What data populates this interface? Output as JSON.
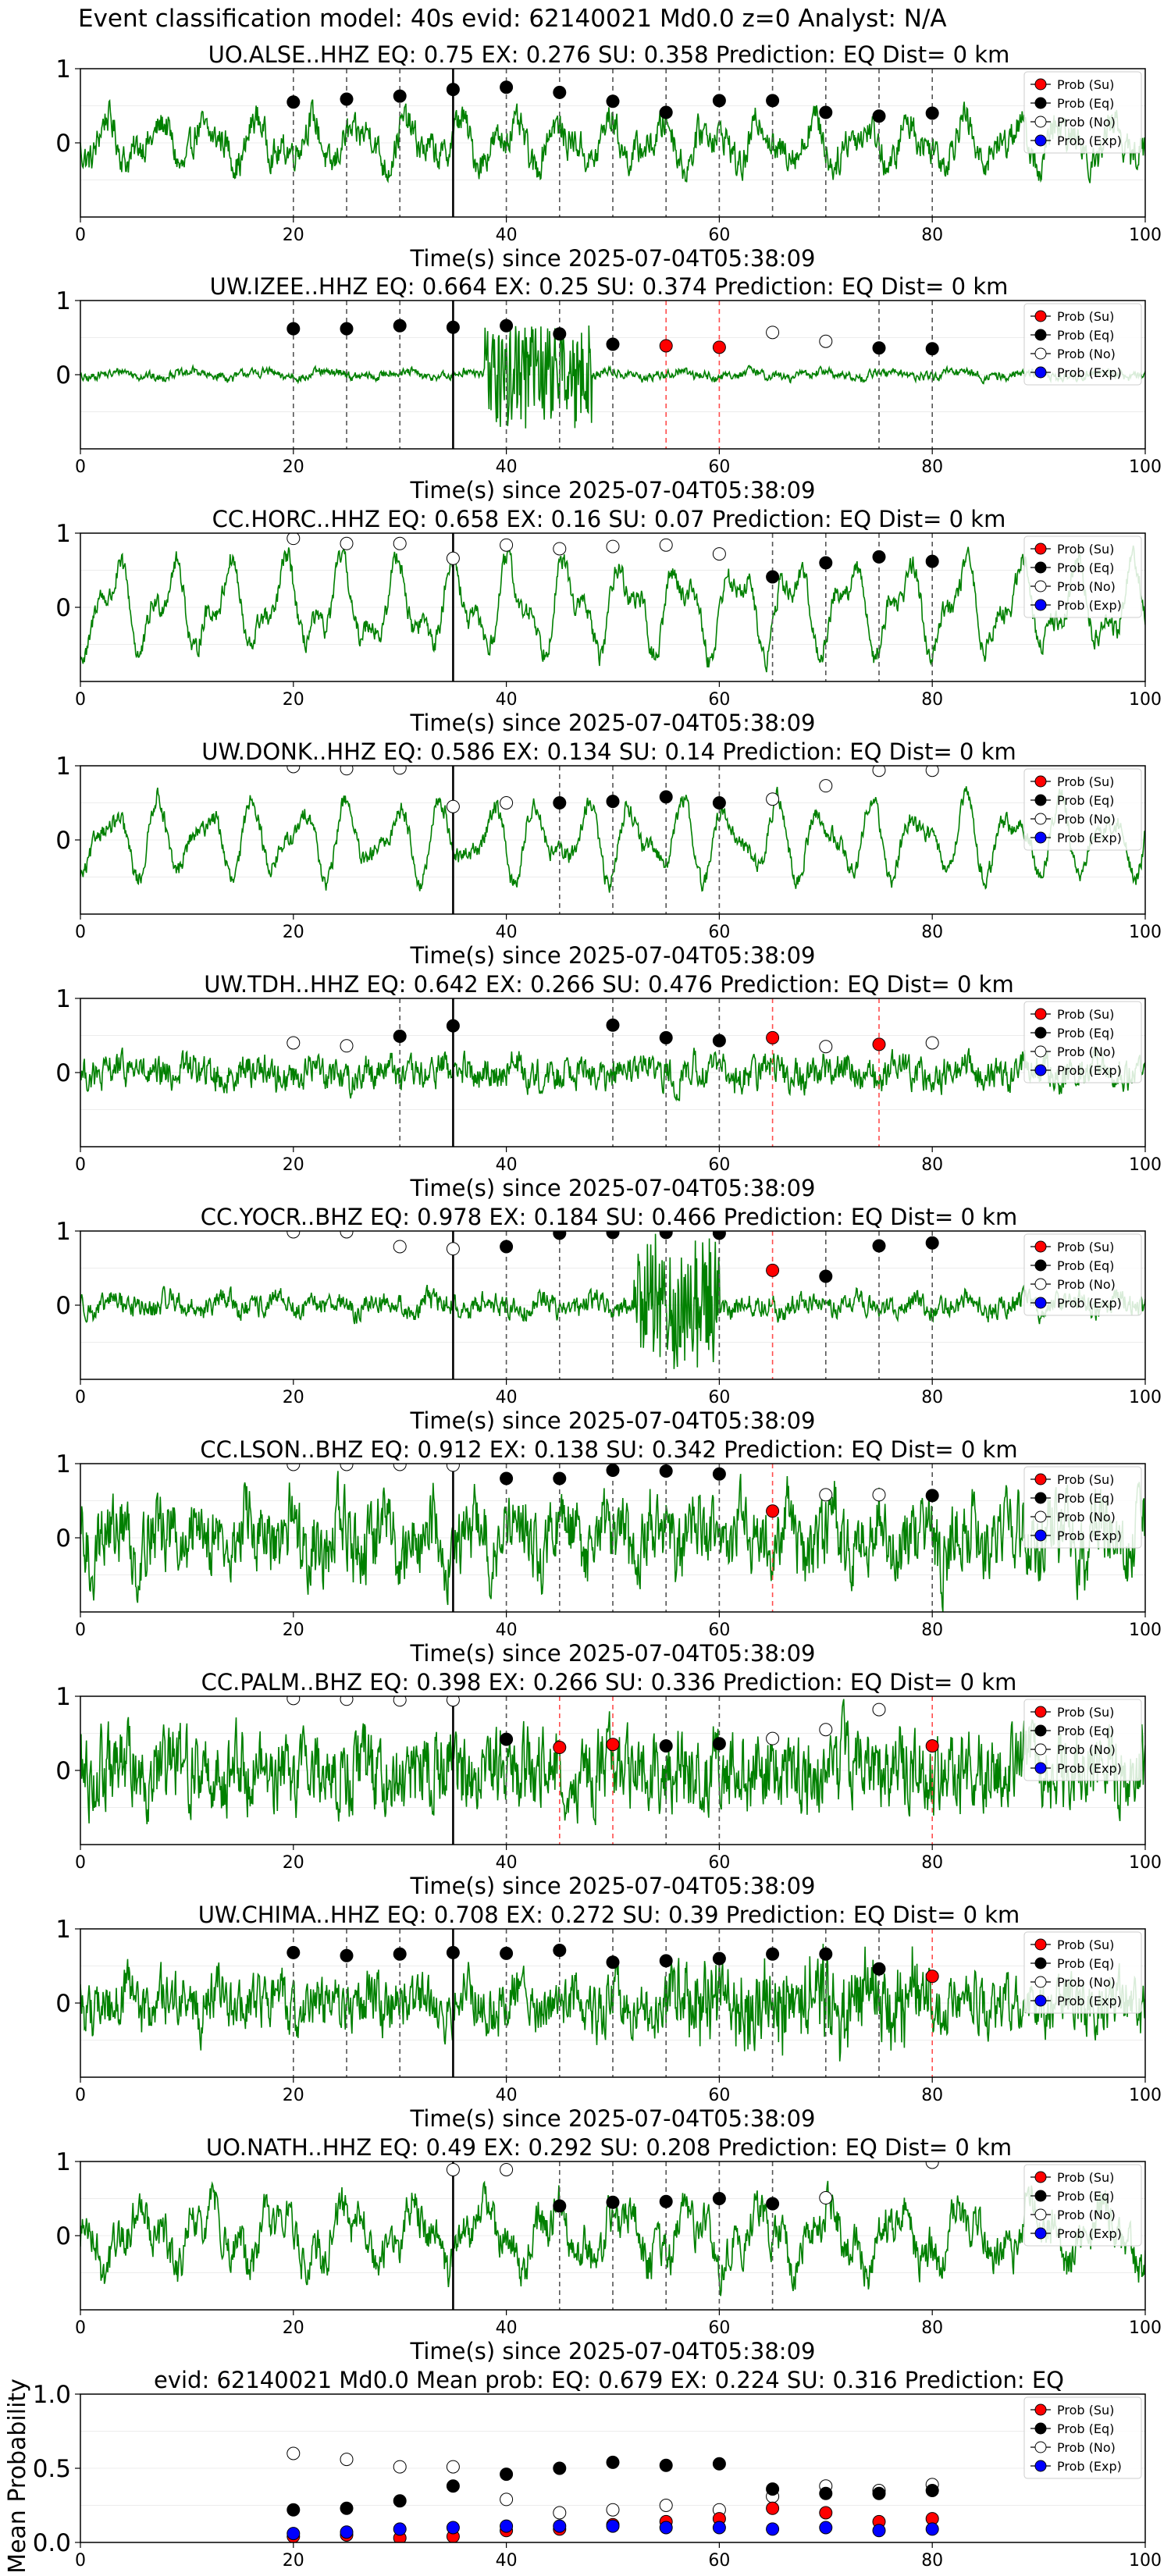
{
  "figure_title": "Event classification model: 40s evid: 62140021 Md0.0 z=0 Analyst: N/A",
  "colors": {
    "waveform": "#008000",
    "su": "#ff0000",
    "eq": "#000000",
    "no": "#ffffff",
    "exp": "#0000ff",
    "eq_line": "#555555",
    "su_line": "#ff4d4d",
    "arrival_line": "#000000"
  },
  "legend": [
    "Prob (Su)",
    "Prob (Eq)",
    "Prob (No)",
    "Prob (Exp)"
  ],
  "shared_xlabel": "Time(s) since 2025-07-04T05:38:09",
  "chart_data": [
    {
      "type": "line",
      "station": "UO.ALSE..HHZ",
      "title": "UO.ALSE..HHZ   EQ: 0.75   EX: 0.276   SU: 0.358    Prediction: EQ    Dist= 0 km",
      "xlabel": "Time(s) since 2025-07-04T05:38:09",
      "xlim": [
        0,
        100
      ],
      "ylim": [
        -1,
        1
      ],
      "xticks": [
        0,
        20,
        40,
        60,
        80,
        100
      ],
      "yticks": [
        0,
        1
      ],
      "arrival_time": 35,
      "amp": 0.32,
      "noise": 0.18,
      "dots": [
        {
          "x": 20,
          "y": 0.55,
          "c": "eq"
        },
        {
          "x": 25,
          "y": 0.59,
          "c": "eq"
        },
        {
          "x": 30,
          "y": 0.63,
          "c": "eq"
        },
        {
          "x": 35,
          "y": 0.72,
          "c": "eq"
        },
        {
          "x": 40,
          "y": 0.75,
          "c": "eq"
        },
        {
          "x": 45,
          "y": 0.68,
          "c": "eq"
        },
        {
          "x": 50,
          "y": 0.56,
          "c": "eq"
        },
        {
          "x": 55,
          "y": 0.41,
          "c": "eq"
        },
        {
          "x": 60,
          "y": 0.57,
          "c": "eq"
        },
        {
          "x": 65,
          "y": 0.57,
          "c": "eq"
        },
        {
          "x": 70,
          "y": 0.41,
          "c": "eq"
        },
        {
          "x": 75,
          "y": 0.36,
          "c": "eq"
        },
        {
          "x": 80,
          "y": 0.4,
          "c": "eq"
        }
      ]
    },
    {
      "type": "line",
      "station": "UW.IZEE..HHZ",
      "title": "UW.IZEE..HHZ   EQ: 0.664  EX: 0.25  SU: 0.374    Prediction: EQ    Dist= 0 km",
      "xlabel": "Time(s) since 2025-07-04T05:38:09",
      "xlim": [
        0,
        100
      ],
      "ylim": [
        -1,
        1
      ],
      "xticks": [
        0,
        20,
        40,
        60,
        80,
        100
      ],
      "yticks": [
        0,
        1
      ],
      "arrival_time": 35,
      "amp": 0.05,
      "noise": 0.05,
      "burst": [
        38,
        48,
        0.7
      ],
      "dots": [
        {
          "x": 20,
          "y": 0.62,
          "c": "eq"
        },
        {
          "x": 25,
          "y": 0.62,
          "c": "eq"
        },
        {
          "x": 30,
          "y": 0.66,
          "c": "eq"
        },
        {
          "x": 35,
          "y": 0.64,
          "c": "eq"
        },
        {
          "x": 40,
          "y": 0.66,
          "c": "eq"
        },
        {
          "x": 45,
          "y": 0.55,
          "c": "eq"
        },
        {
          "x": 50,
          "y": 0.41,
          "c": "eq"
        },
        {
          "x": 55,
          "y": 0.39,
          "c": "su"
        },
        {
          "x": 60,
          "y": 0.37,
          "c": "su"
        },
        {
          "x": 65,
          "y": 0.57,
          "c": "no"
        },
        {
          "x": 70,
          "y": 0.45,
          "c": "no"
        },
        {
          "x": 75,
          "y": 0.36,
          "c": "eq"
        },
        {
          "x": 80,
          "y": 0.35,
          "c": "eq"
        }
      ]
    },
    {
      "type": "line",
      "station": "CC.HORC..HHZ",
      "title": "CC.HORC..HHZ   EQ: 0.658  EX: 0.16  SU: 0.07   Prediction: EQ    Dist= 0 km",
      "xlabel": "Time(s) since 2025-07-04T05:38:09",
      "xlim": [
        0,
        100
      ],
      "ylim": [
        -1,
        1
      ],
      "xticks": [
        0,
        20,
        40,
        60,
        80,
        100
      ],
      "yticks": [
        0,
        1
      ],
      "arrival_time": 35,
      "amp": 0.65,
      "noise": 0.12,
      "dots": [
        {
          "x": 20,
          "y": 0.93,
          "c": "no"
        },
        {
          "x": 25,
          "y": 0.86,
          "c": "no"
        },
        {
          "x": 30,
          "y": 0.86,
          "c": "no"
        },
        {
          "x": 35,
          "y": 0.66,
          "c": "no"
        },
        {
          "x": 40,
          "y": 0.84,
          "c": "no"
        },
        {
          "x": 45,
          "y": 0.79,
          "c": "no"
        },
        {
          "x": 50,
          "y": 0.82,
          "c": "no"
        },
        {
          "x": 55,
          "y": 0.84,
          "c": "no"
        },
        {
          "x": 60,
          "y": 0.72,
          "c": "no"
        },
        {
          "x": 65,
          "y": 0.41,
          "c": "eq"
        },
        {
          "x": 70,
          "y": 0.6,
          "c": "eq"
        },
        {
          "x": 75,
          "y": 0.68,
          "c": "eq"
        },
        {
          "x": 80,
          "y": 0.62,
          "c": "eq"
        }
      ]
    },
    {
      "type": "line",
      "station": "UW.DONK..HHZ",
      "title": "UW.DONK..HHZ   EQ: 0.586  EX: 0.134  SU: 0.14    Prediction: EQ    Dist= 0 km",
      "xlabel": "Time(s) since 2025-07-04T05:38:09",
      "xlim": [
        0,
        100
      ],
      "ylim": [
        -1,
        1
      ],
      "xticks": [
        0,
        20,
        40,
        60,
        80,
        100
      ],
      "yticks": [
        0,
        1
      ],
      "arrival_time": 35,
      "amp": 0.55,
      "noise": 0.1,
      "dots": [
        {
          "x": 20,
          "y": 0.99,
          "c": "no"
        },
        {
          "x": 25,
          "y": 0.96,
          "c": "no"
        },
        {
          "x": 30,
          "y": 0.97,
          "c": "no"
        },
        {
          "x": 35,
          "y": 0.45,
          "c": "no"
        },
        {
          "x": 40,
          "y": 0.5,
          "c": "no"
        },
        {
          "x": 45,
          "y": 0.5,
          "c": "eq"
        },
        {
          "x": 50,
          "y": 0.52,
          "c": "eq"
        },
        {
          "x": 55,
          "y": 0.58,
          "c": "eq"
        },
        {
          "x": 60,
          "y": 0.5,
          "c": "eq"
        },
        {
          "x": 65,
          "y": 0.55,
          "c": "no"
        },
        {
          "x": 70,
          "y": 0.73,
          "c": "no"
        },
        {
          "x": 75,
          "y": 0.94,
          "c": "no"
        },
        {
          "x": 80,
          "y": 0.94,
          "c": "no"
        }
      ]
    },
    {
      "type": "line",
      "station": "UW.TDH..HHZ",
      "title": "UW.TDH..HHZ   EQ: 0.642  EX: 0.266  SU: 0.476   Prediction: EQ    Dist= 0 km",
      "xlabel": "Time(s) since 2025-07-04T05:38:09",
      "xlim": [
        0,
        100
      ],
      "ylim": [
        -1,
        1
      ],
      "xticks": [
        0,
        20,
        40,
        60,
        80,
        100
      ],
      "yticks": [
        0,
        1
      ],
      "arrival_time": 35,
      "amp": 0.1,
      "noise": 0.18,
      "dots": [
        {
          "x": 20,
          "y": 0.4,
          "c": "no"
        },
        {
          "x": 25,
          "y": 0.36,
          "c": "no"
        },
        {
          "x": 30,
          "y": 0.49,
          "c": "eq"
        },
        {
          "x": 35,
          "y": 0.63,
          "c": "eq"
        },
        {
          "x": 50,
          "y": 0.64,
          "c": "eq"
        },
        {
          "x": 55,
          "y": 0.47,
          "c": "eq"
        },
        {
          "x": 60,
          "y": 0.43,
          "c": "eq"
        },
        {
          "x": 65,
          "y": 0.47,
          "c": "su"
        },
        {
          "x": 70,
          "y": 0.35,
          "c": "no"
        },
        {
          "x": 75,
          "y": 0.38,
          "c": "su"
        },
        {
          "x": 80,
          "y": 0.4,
          "c": "no"
        }
      ]
    },
    {
      "type": "line",
      "station": "CC.YOCR..BHZ",
      "title": "CC.YOCR..BHZ    EQ: 0.978  EX: 0.184  SU: 0.466    Prediction: EQ    Dist= 0 km",
      "xlabel": "Time(s) since 2025-07-04T05:38:09",
      "xlim": [
        0,
        100
      ],
      "ylim": [
        -1,
        1
      ],
      "xticks": [
        0,
        20,
        40,
        60,
        80,
        100
      ],
      "yticks": [
        0,
        1
      ],
      "arrival_time": 35,
      "amp": 0.1,
      "noise": 0.12,
      "burst": [
        52,
        60,
        0.8
      ],
      "dots": [
        {
          "x": 20,
          "y": 0.99,
          "c": "no"
        },
        {
          "x": 25,
          "y": 0.99,
          "c": "no"
        },
        {
          "x": 30,
          "y": 0.79,
          "c": "no"
        },
        {
          "x": 35,
          "y": 0.76,
          "c": "no"
        },
        {
          "x": 40,
          "y": 0.79,
          "c": "eq"
        },
        {
          "x": 45,
          "y": 0.97,
          "c": "eq"
        },
        {
          "x": 50,
          "y": 0.98,
          "c": "eq"
        },
        {
          "x": 55,
          "y": 0.98,
          "c": "eq"
        },
        {
          "x": 60,
          "y": 0.97,
          "c": "eq"
        },
        {
          "x": 65,
          "y": 0.47,
          "c": "su"
        },
        {
          "x": 70,
          "y": 0.39,
          "c": "eq"
        },
        {
          "x": 75,
          "y": 0.8,
          "c": "eq"
        },
        {
          "x": 80,
          "y": 0.84,
          "c": "eq"
        }
      ]
    },
    {
      "type": "line",
      "station": "CC.LSON..BHZ",
      "title": "CC.LSON..BHZ    EQ: 0.912  EX: 0.138  SU: 0.342    Prediction: EQ    Dist= 0 km",
      "xlabel": "Time(s) since 2025-07-04T05:38:09",
      "xlim": [
        0,
        100
      ],
      "ylim": [
        -1,
        1
      ],
      "xticks": [
        0,
        20,
        40,
        60,
        80,
        100
      ],
      "yticks": [
        0,
        1
      ],
      "arrival_time": 35,
      "amp": 0.3,
      "noise": 0.4,
      "dots": [
        {
          "x": 20,
          "y": 0.99,
          "c": "no"
        },
        {
          "x": 25,
          "y": 0.99,
          "c": "no"
        },
        {
          "x": 30,
          "y": 0.99,
          "c": "no"
        },
        {
          "x": 35,
          "y": 0.98,
          "c": "no"
        },
        {
          "x": 40,
          "y": 0.8,
          "c": "eq"
        },
        {
          "x": 45,
          "y": 0.8,
          "c": "eq"
        },
        {
          "x": 50,
          "y": 0.91,
          "c": "eq"
        },
        {
          "x": 55,
          "y": 0.9,
          "c": "eq"
        },
        {
          "x": 60,
          "y": 0.86,
          "c": "eq"
        },
        {
          "x": 65,
          "y": 0.36,
          "c": "su"
        },
        {
          "x": 70,
          "y": 0.58,
          "c": "no"
        },
        {
          "x": 75,
          "y": 0.58,
          "c": "no"
        },
        {
          "x": 80,
          "y": 0.57,
          "c": "eq"
        }
      ]
    },
    {
      "type": "line",
      "station": "CC.PALM..BHZ",
      "title": "CC.PALM..BHZ   EQ: 0.398  EX: 0.266  SU: 0.336    Prediction: EQ    Dist= 0 km",
      "xlabel": "Time(s) since 2025-07-04T05:38:09",
      "xlim": [
        0,
        100
      ],
      "ylim": [
        -1,
        1
      ],
      "xticks": [
        0,
        20,
        40,
        60,
        80,
        100
      ],
      "yticks": [
        0,
        1
      ],
      "arrival_time": 35,
      "amp": 0.1,
      "noise": 0.45,
      "dots": [
        {
          "x": 20,
          "y": 0.97,
          "c": "no"
        },
        {
          "x": 25,
          "y": 0.96,
          "c": "no"
        },
        {
          "x": 30,
          "y": 0.95,
          "c": "no"
        },
        {
          "x": 35,
          "y": 0.95,
          "c": "no"
        },
        {
          "x": 40,
          "y": 0.42,
          "c": "eq"
        },
        {
          "x": 45,
          "y": 0.31,
          "c": "su"
        },
        {
          "x": 50,
          "y": 0.35,
          "c": "su"
        },
        {
          "x": 55,
          "y": 0.33,
          "c": "eq"
        },
        {
          "x": 60,
          "y": 0.36,
          "c": "eq"
        },
        {
          "x": 65,
          "y": 0.43,
          "c": "no"
        },
        {
          "x": 70,
          "y": 0.55,
          "c": "no"
        },
        {
          "x": 75,
          "y": 0.82,
          "c": "no"
        },
        {
          "x": 80,
          "y": 0.33,
          "c": "su"
        }
      ]
    },
    {
      "type": "line",
      "station": "UW.CHIMA..HHZ",
      "title": "UW.CHIMA..HHZ   EQ: 0.708  EX: 0.272  SU: 0.39    Prediction: EQ    Dist= 0 km",
      "xlabel": "Time(s) since 2025-07-04T05:38:09",
      "xlim": [
        0,
        100
      ],
      "ylim": [
        -1,
        1
      ],
      "xticks": [
        0,
        20,
        40,
        60,
        80,
        100
      ],
      "yticks": [
        0,
        1
      ],
      "arrival_time": 35,
      "amp": 0.15,
      "noise": 0.3,
      "burst": [
        55,
        80,
        0.35
      ],
      "dots": [
        {
          "x": 20,
          "y": 0.68,
          "c": "eq"
        },
        {
          "x": 25,
          "y": 0.64,
          "c": "eq"
        },
        {
          "x": 30,
          "y": 0.66,
          "c": "eq"
        },
        {
          "x": 35,
          "y": 0.68,
          "c": "eq"
        },
        {
          "x": 40,
          "y": 0.67,
          "c": "eq"
        },
        {
          "x": 45,
          "y": 0.71,
          "c": "eq"
        },
        {
          "x": 50,
          "y": 0.55,
          "c": "eq"
        },
        {
          "x": 55,
          "y": 0.57,
          "c": "eq"
        },
        {
          "x": 60,
          "y": 0.6,
          "c": "eq"
        },
        {
          "x": 65,
          "y": 0.66,
          "c": "eq"
        },
        {
          "x": 70,
          "y": 0.66,
          "c": "eq"
        },
        {
          "x": 75,
          "y": 0.46,
          "c": "eq"
        },
        {
          "x": 80,
          "y": 0.36,
          "c": "su"
        }
      ]
    },
    {
      "type": "line",
      "station": "UO.NATH..HHZ",
      "title": "UO.NATH..HHZ   EQ: 0.49  EX: 0.292  SU: 0.208    Prediction: EQ    Dist= 0 km",
      "xlabel": "Time(s) since 2025-07-04T05:38:09",
      "xlim": [
        0,
        100
      ],
      "ylim": [
        -1,
        1
      ],
      "xticks": [
        0,
        20,
        40,
        60,
        80,
        100
      ],
      "yticks": [
        0,
        1
      ],
      "arrival_time": 35,
      "amp": 0.45,
      "noise": 0.22,
      "dots": [
        {
          "x": 35,
          "y": 0.89,
          "c": "no"
        },
        {
          "x": 40,
          "y": 0.89,
          "c": "no"
        },
        {
          "x": 45,
          "y": 0.4,
          "c": "eq"
        },
        {
          "x": 50,
          "y": 0.45,
          "c": "eq"
        },
        {
          "x": 55,
          "y": 0.46,
          "c": "eq"
        },
        {
          "x": 60,
          "y": 0.5,
          "c": "eq"
        },
        {
          "x": 65,
          "y": 0.43,
          "c": "eq"
        },
        {
          "x": 70,
          "y": 0.51,
          "c": "no"
        },
        {
          "x": 80,
          "y": 0.99,
          "c": "no"
        }
      ]
    },
    {
      "type": "scatter",
      "title": "evid: 62140021   Md0.0   Mean prob:    EQ: 0.679  EX: 0.224  SU: 0.316   Prediction: EQ",
      "xlabel": "",
      "ylabel": "Mean Probability",
      "xlim": [
        0,
        100
      ],
      "ylim": [
        0,
        1
      ],
      "xticks": [
        0,
        20,
        40,
        60,
        80,
        100
      ],
      "yticks": [
        0.0,
        0.5,
        1.0
      ],
      "ytick_labels": [
        "0.0",
        "0.5",
        "1.0"
      ],
      "x": [
        20,
        25,
        30,
        35,
        40,
        45,
        50,
        55,
        60,
        65,
        70,
        75,
        80
      ],
      "series": [
        {
          "name": "Prob (No)",
          "c": "no",
          "values": [
            0.6,
            0.56,
            0.51,
            0.51,
            0.29,
            0.2,
            0.22,
            0.25,
            0.22,
            0.31,
            0.38,
            0.35,
            0.39
          ]
        },
        {
          "name": "Prob (Eq)",
          "c": "eq",
          "values": [
            0.22,
            0.23,
            0.28,
            0.38,
            0.46,
            0.5,
            0.54,
            0.52,
            0.53,
            0.36,
            0.33,
            0.33,
            0.35
          ]
        },
        {
          "name": "Prob (Su)",
          "c": "su",
          "values": [
            0.04,
            0.05,
            0.03,
            0.04,
            0.08,
            0.09,
            0.12,
            0.14,
            0.16,
            0.23,
            0.2,
            0.14,
            0.16
          ]
        },
        {
          "name": "Prob (Exp)",
          "c": "exp",
          "values": [
            0.06,
            0.07,
            0.09,
            0.1,
            0.11,
            0.11,
            0.11,
            0.1,
            0.1,
            0.09,
            0.1,
            0.08,
            0.09
          ]
        }
      ]
    }
  ]
}
